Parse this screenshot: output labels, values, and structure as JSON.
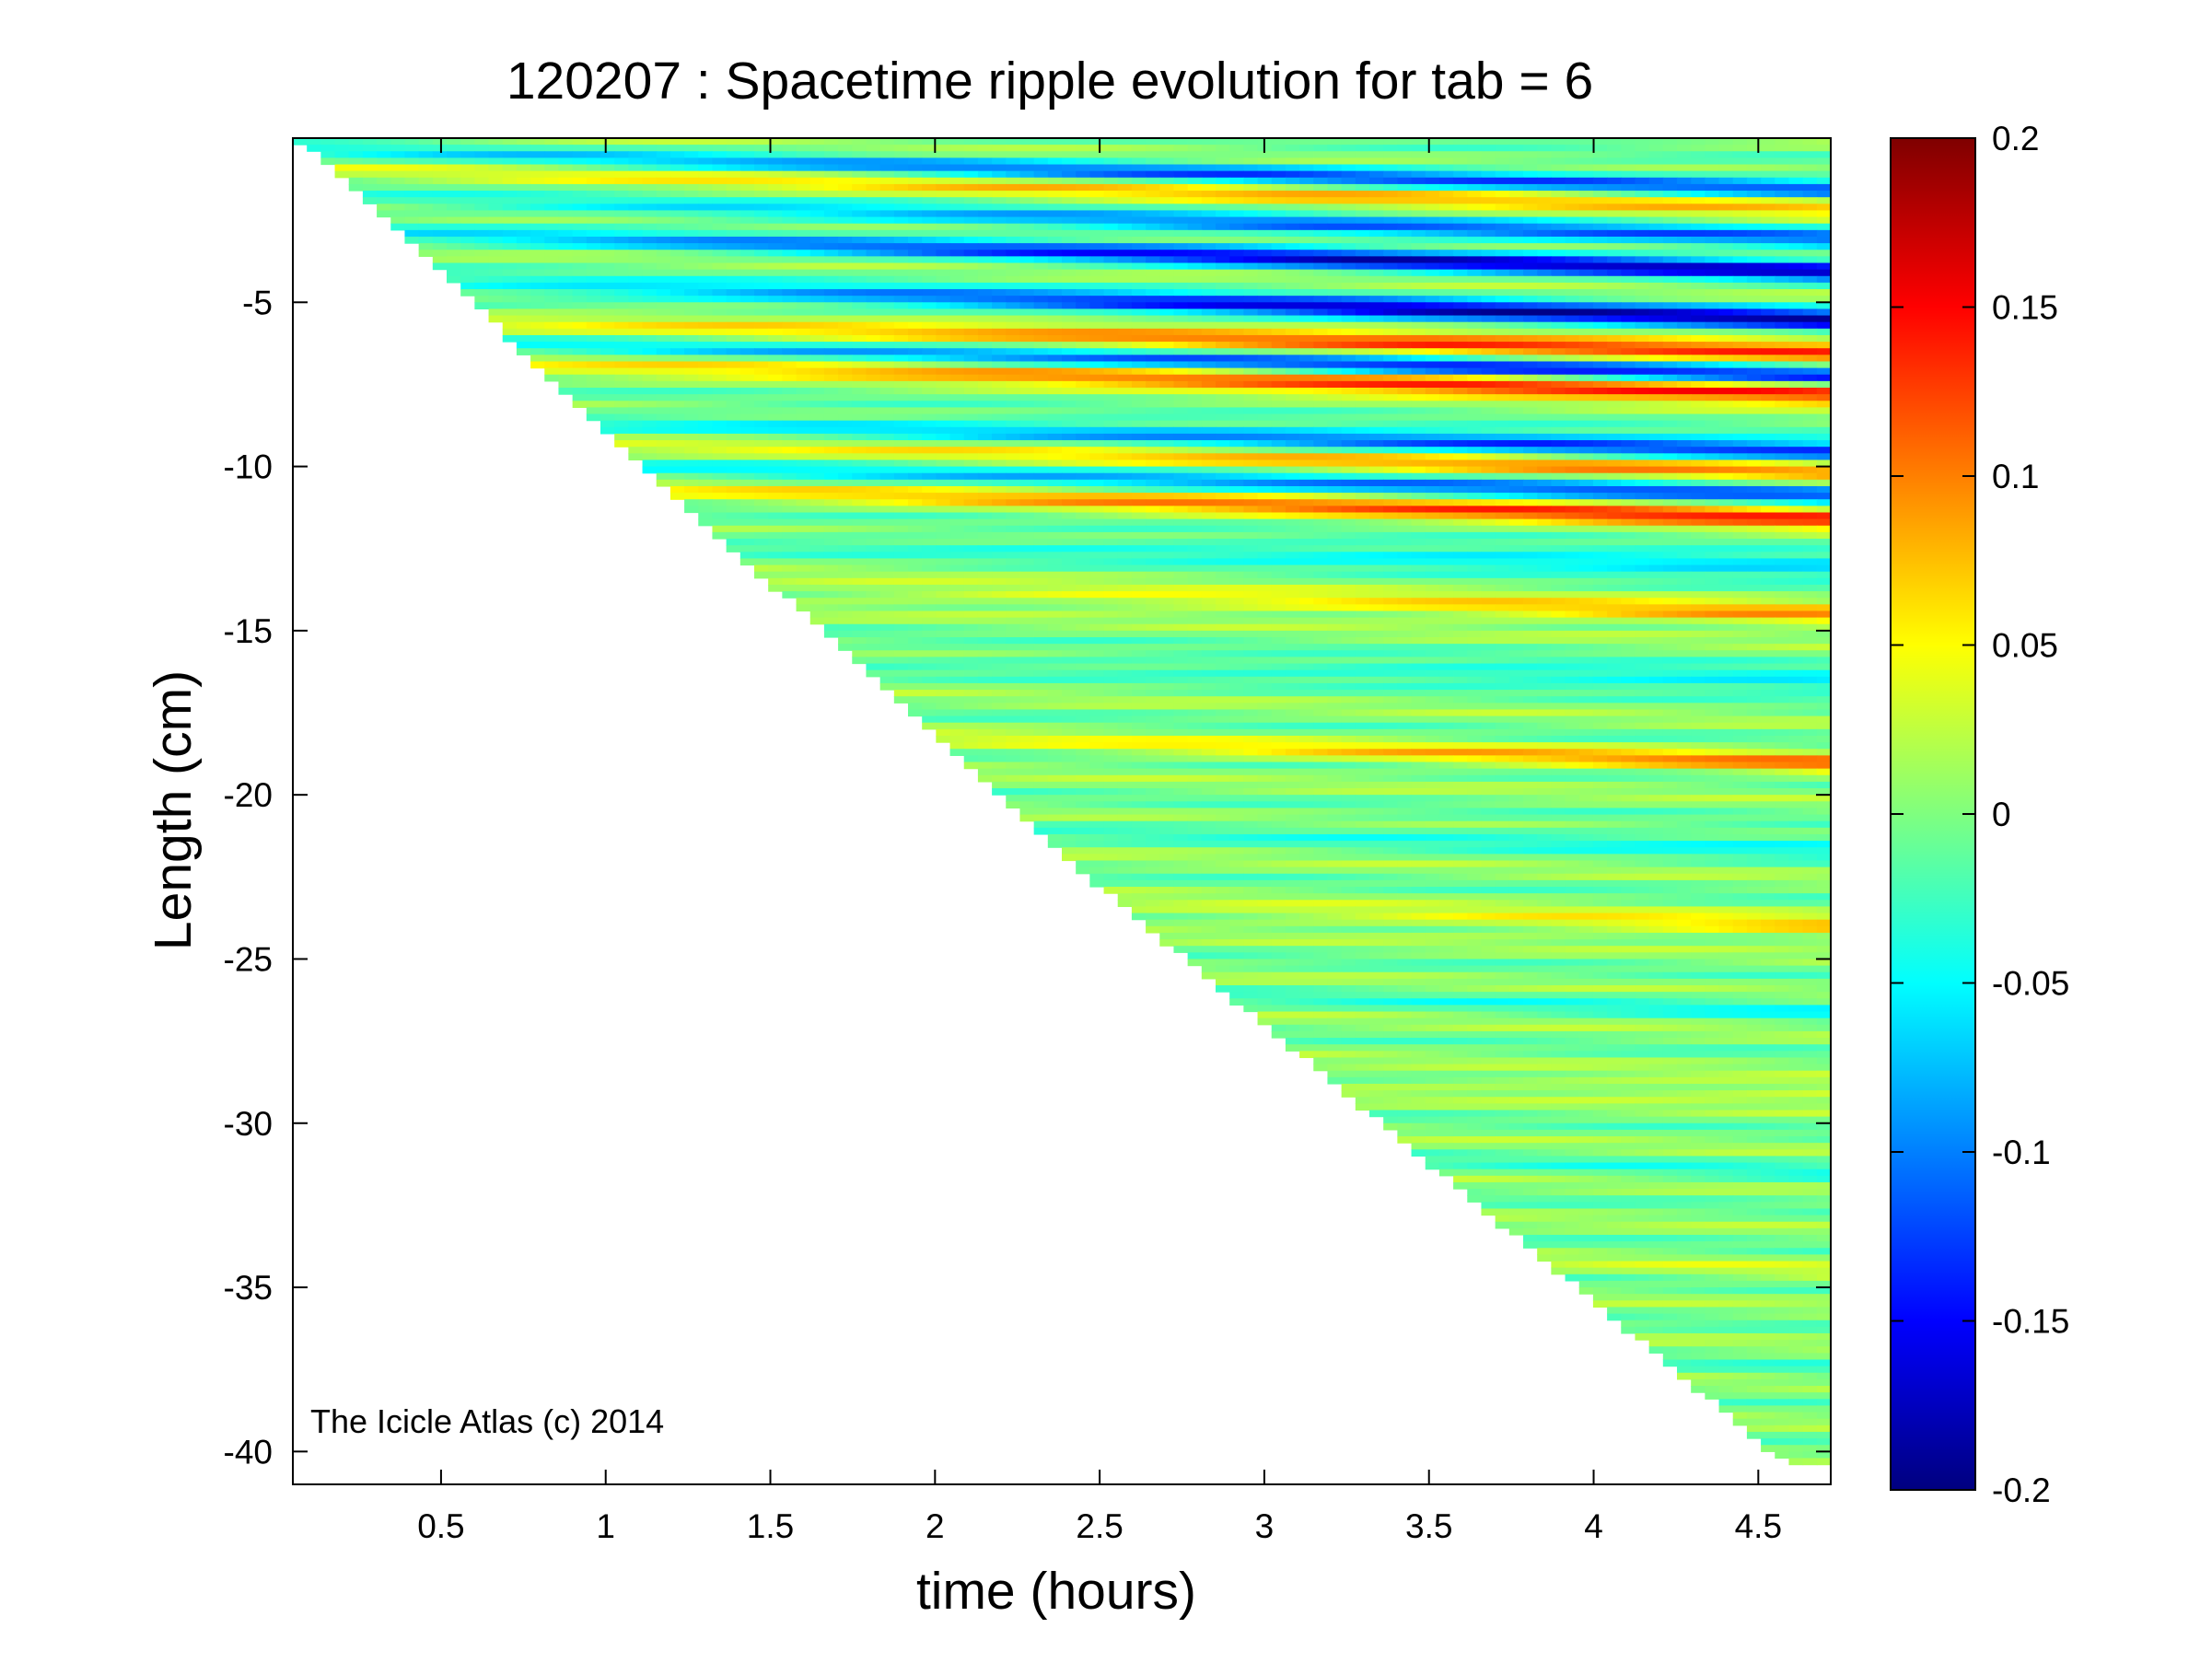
{
  "chart_data": {
    "type": "heatmap",
    "title": "120207 : Spacetime ripple evolution for tab = 6",
    "xlabel": "time (hours)",
    "ylabel": "Length (cm)",
    "x_ticks": [
      "0.5",
      "1",
      "1.5",
      "2",
      "2.5",
      "3",
      "3.5",
      "4",
      "4.5"
    ],
    "x_tick_values": [
      0.5,
      1,
      1.5,
      2,
      2.5,
      3,
      3.5,
      4,
      4.5
    ],
    "y_ticks": [
      "-5",
      "-10",
      "-15",
      "-20",
      "-25",
      "-30",
      "-35",
      "-40"
    ],
    "y_tick_values": [
      -5,
      -10,
      -15,
      -20,
      -25,
      -30,
      -35,
      -40
    ],
    "xlim": [
      0.05,
      4.72
    ],
    "ylim": [
      -41,
      0
    ],
    "grid": false,
    "colormap": "jet",
    "clim": [
      -0.2,
      0.2
    ],
    "colorbar_ticks": [
      "0.2",
      "0.15",
      "0.1",
      "0.05",
      "0",
      "-0.05",
      "-0.1",
      "-0.15",
      "-0.2"
    ],
    "colorbar_tick_values": [
      0.2,
      0.15,
      0.1,
      0.05,
      0,
      -0.05,
      -0.1,
      -0.15,
      -0.2
    ],
    "data_boundary": {
      "description_points_time_length": [
        [
          0.05,
          0
        ],
        [
          0.1,
          -0.3
        ],
        [
          1.2,
          -10.8
        ],
        [
          2.5,
          -22.8
        ],
        [
          4.6,
          -40.5
        ],
        [
          4.67,
          -40.5
        ]
      ]
    },
    "ripple_bands": [
      {
        "length": -1.0,
        "amplitude_end": -0.12
      },
      {
        "length": -1.5,
        "amplitude_end": 0.08
      },
      {
        "length": -2.5,
        "amplitude_end": -0.1
      },
      {
        "length": -3.5,
        "amplitude_end": -0.16
      },
      {
        "length": -5.0,
        "amplitude_end": -0.18
      },
      {
        "length": -6.0,
        "amplitude_end": 0.15
      },
      {
        "length": -6.7,
        "amplitude_end": -0.17
      },
      {
        "length": -7.2,
        "amplitude_end": 0.17
      },
      {
        "length": -9.0,
        "amplitude_end": -0.15
      },
      {
        "length": -9.6,
        "amplitude_end": 0.12
      },
      {
        "length": -10.3,
        "amplitude_end": -0.13
      },
      {
        "length": -11.0,
        "amplitude_end": 0.14
      },
      {
        "length": -12.5,
        "amplitude_end": -0.08
      },
      {
        "length": -14.0,
        "amplitude_end": 0.09
      },
      {
        "length": -16.0,
        "amplitude_end": -0.07
      },
      {
        "length": -18.5,
        "amplitude_end": 0.1
      },
      {
        "length": -21.0,
        "amplitude_end": -0.06
      },
      {
        "length": -23.5,
        "amplitude_end": 0.09
      },
      {
        "length": -26.0,
        "amplitude_end": -0.05
      },
      {
        "length": -28.5,
        "amplitude_end": 0.06
      },
      {
        "length": -31.0,
        "amplitude_end": -0.05
      },
      {
        "length": -34.0,
        "amplitude_end": 0.05
      },
      {
        "length": -37.0,
        "amplitude_end": -0.04
      }
    ]
  },
  "watermark": "The Icicle Atlas (c) 2014"
}
